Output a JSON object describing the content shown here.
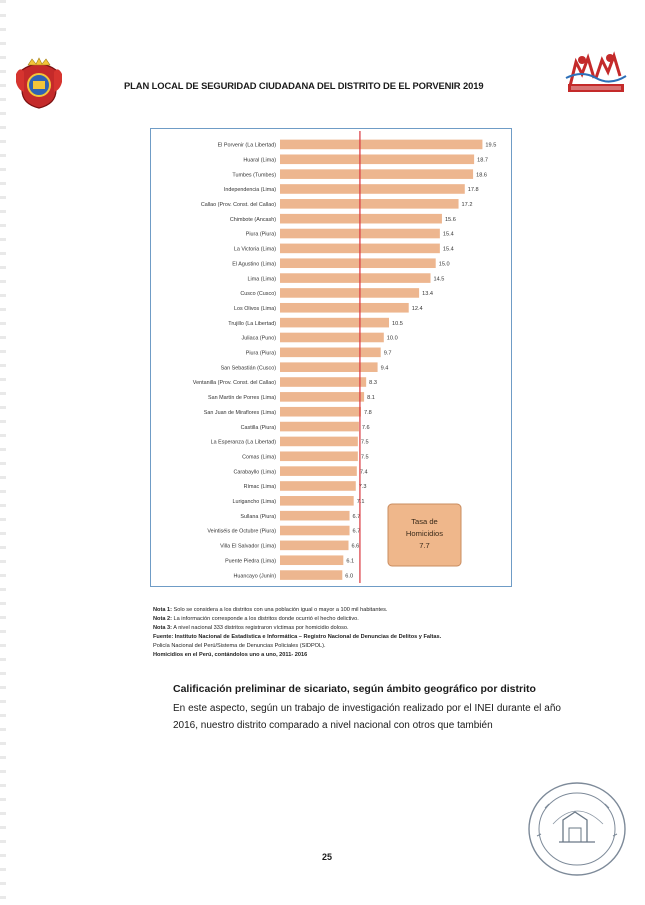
{
  "header": {
    "title": "PLAN LOCAL DE SEGURIDAD CIUDADANA DEL DISTRITO DE EL PORVENIR 2019"
  },
  "colors": {
    "bar": "#edb68f",
    "average_line": "#d9363e",
    "frame": "#6f9cc6",
    "callout_bg": "#efb78b"
  },
  "chart_data": {
    "type": "bar",
    "orientation": "horizontal",
    "categories": [
      "El Porvenir (La Libertad)",
      "Huaral (Lima)",
      "Tumbes (Tumbes)",
      "Independencia (Lima)",
      "Callao (Prov. Const. del Callao)",
      "Chimbote (Ancash)",
      "Piura (Piura)",
      "La Victoria (Lima)",
      "El Agustino (Lima)",
      "Lima (Lima)",
      "Cusco (Cusco)",
      "Los Olivos (Lima)",
      "Trujillo (La Libertad)",
      "Juliaca (Puno)",
      "Piura (Piura)",
      "San Sebastián (Cusco)",
      "Ventanilla (Prov. Const. del Callao)",
      "San Martín de Porres (Lima)",
      "San Juan de Miraflores (Lima)",
      "Castilla (Piura)",
      "La Esperanza (La Libertad)",
      "Comas (Lima)",
      "Carabayllo (Lima)",
      "Rímac (Lima)",
      "Lurigancho (Lima)",
      "Sullana (Piura)",
      "Veintiséis de Octubre (Piura)",
      "Villa El Salvador (Lima)",
      "Puente Piedra (Lima)",
      "Huancayo (Junín)"
    ],
    "values": [
      19.5,
      18.7,
      18.6,
      17.8,
      17.2,
      15.6,
      15.4,
      15.4,
      15.0,
      14.5,
      13.4,
      12.4,
      10.5,
      10.0,
      9.7,
      9.4,
      8.3,
      8.1,
      7.8,
      7.6,
      7.5,
      7.5,
      7.4,
      7.3,
      7.1,
      6.7,
      6.7,
      6.6,
      6.1,
      6.0
    ],
    "value_labels": [
      "19.5",
      "18.7",
      "18.6",
      "17.8",
      "17.2",
      "15.6",
      "15.4",
      "15.4",
      "15.0",
      "14.5",
      "13.4",
      "12.4",
      "10.5",
      "10.0",
      "9.7",
      "9.4",
      "8.3",
      "8.1",
      "7.8",
      "7.6",
      "7.5",
      "7.5",
      "7.4",
      "7.3",
      "7.1",
      "6.7",
      "6.7",
      "6.6",
      "6.1",
      "6.0"
    ],
    "average_line_value": 7.7,
    "xlim": [
      0,
      21
    ],
    "callout": {
      "lines": [
        "Tasa de",
        "Homicidios",
        "7.7"
      ]
    },
    "grid": false,
    "legend": "none"
  },
  "notes": [
    {
      "label": "Nota 1:",
      "text": "Solo se considera a los distritos con una población igual o mayor a 100 mil habitantes."
    },
    {
      "label": "Nota 2:",
      "text": "La información corresponde a los distritos donde ocurrió el hecho delictivo."
    },
    {
      "label": "Nota 3:",
      "text": "A nivel nacional 333 distritos registraron víctimas por homicidio doloso."
    },
    {
      "label": "Fuente:",
      "text": "Instituto Nacional de Estadística e Informática – Registro Nacional de Denuncias de Delitos y Faltas."
    },
    {
      "label": "",
      "text": "Policía Nacional del Perú/Sistema de Denuncias Policiales (SIDPOL)."
    },
    {
      "label": "Homicidios en el Perú, contándolos uno a uno, 2011- 2016",
      "text": ""
    }
  ],
  "section": {
    "heading": "Calificación preliminar de sicariato, según ámbito geográfico por distrito",
    "paragraph": "En este aspecto, según un trabajo de investigación realizado por el INEI durante el año 2016, nuestro distrito comparado a nivel nacional con otros que también"
  },
  "page_number": "25",
  "icons": {
    "crest": "municipal-crest-icon",
    "right_logo": "seguridad-ciudadana-logo-icon",
    "seal": "official-seal-stamp-icon"
  }
}
